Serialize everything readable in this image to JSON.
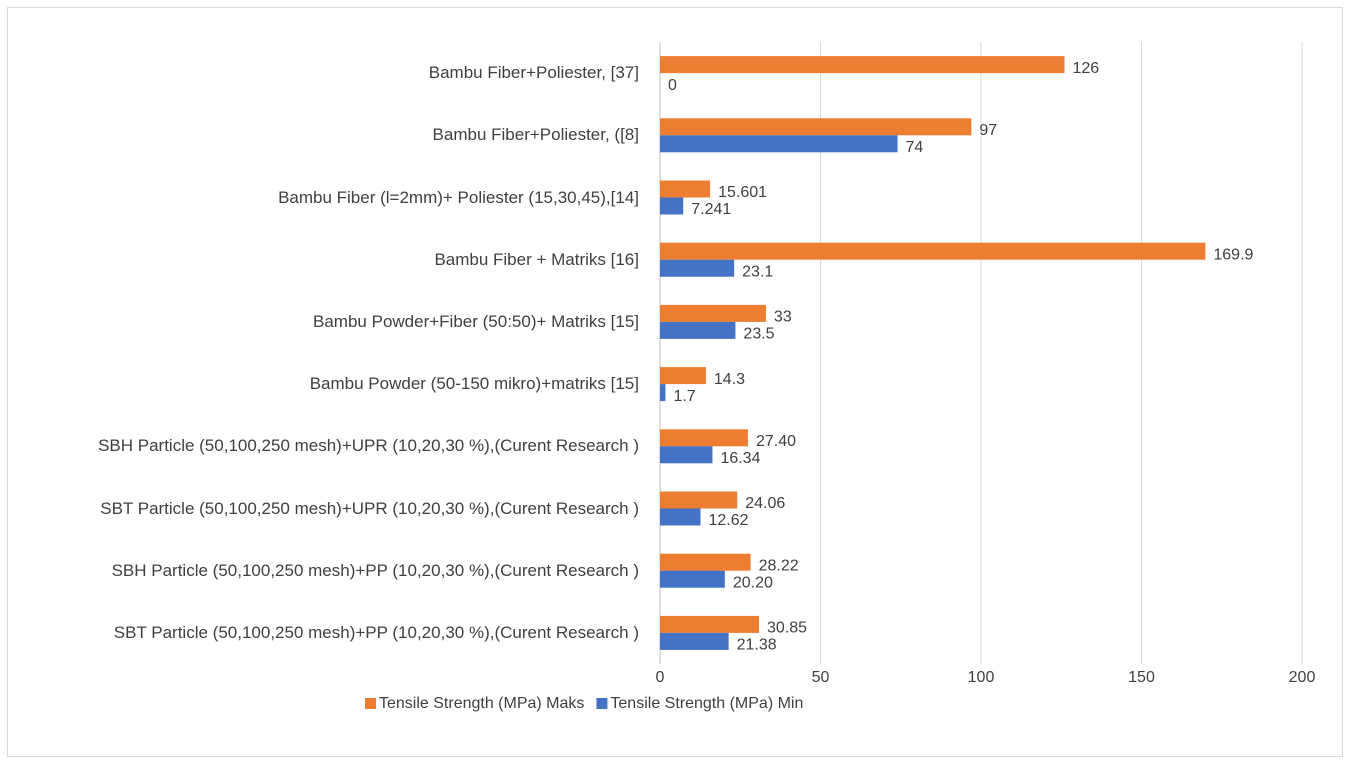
{
  "chart_data": {
    "type": "bar",
    "orientation": "horizontal",
    "categories": [
      "Bambu Fiber+Poliester, [37]",
      "Bambu Fiber+Poliester, ([8]",
      "Bambu Fiber (l=2mm)+ Poliester (15,30,45),[14]",
      "Bambu Fiber + Matriks [16]",
      "Bambu Powder+Fiber (50:50)+ Matriks [15]",
      "Bambu Powder (50-150 mikro)+matriks [15]",
      "SBH Particle (50,100,250 mesh)+UPR (10,20,30 %),(Curent Research )",
      "SBT Particle (50,100,250 mesh)+UPR (10,20,30 %),(Curent Research )",
      "SBH Particle (50,100,250 mesh)+PP (10,20,30 %),(Curent Research )",
      "SBT Particle (50,100,250 mesh)+PP (10,20,30 %),(Curent Research )"
    ],
    "series": [
      {
        "name": "Tensile Strength (MPa) Maks",
        "color": "#ed7d31",
        "values": [
          126,
          97,
          15.601,
          169.9,
          33,
          14.3,
          27.4,
          24.06,
          28.22,
          30.85
        ],
        "value_labels": [
          "126",
          "97",
          "15.601",
          "169.9",
          "33",
          "14.3",
          "27.40",
          "24.06",
          "28.22",
          "30.85"
        ]
      },
      {
        "name": "Tensile Strength (MPa) Min",
        "color": "#4472c4",
        "values": [
          0,
          74,
          7.241,
          23.1,
          23.5,
          1.7,
          16.34,
          12.62,
          20.2,
          21.38
        ],
        "value_labels": [
          "0",
          "74",
          "7.241",
          "23.1",
          "23.5",
          "1.7",
          "16.34",
          "12.62",
          "20.20",
          "21.38"
        ]
      }
    ],
    "xlim": [
      0,
      200
    ],
    "xticks": [
      0,
      50,
      100,
      150,
      200
    ],
    "grid": true,
    "legend": "bottom"
  }
}
